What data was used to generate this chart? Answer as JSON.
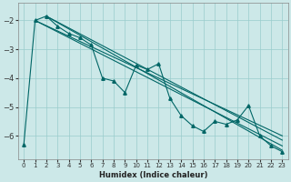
{
  "xlabel": "Humidex (Indice chaleur)",
  "background_color": "#cce8e8",
  "grid_color": "#99cccc",
  "line_color": "#006666",
  "xlim": [
    -0.5,
    23.5
  ],
  "ylim": [
    -6.8,
    -1.4
  ],
  "xticks": [
    0,
    1,
    2,
    3,
    4,
    5,
    6,
    7,
    8,
    9,
    10,
    11,
    12,
    13,
    14,
    15,
    16,
    17,
    18,
    19,
    20,
    21,
    22,
    23
  ],
  "yticks": [
    -6,
    -5,
    -4,
    -3,
    -2
  ],
  "marker_x": [
    0,
    1,
    2,
    3,
    4,
    5,
    6,
    7,
    8,
    9,
    10,
    11,
    12,
    13,
    14,
    15,
    16,
    17,
    18,
    19,
    20,
    21,
    22,
    23
  ],
  "marker_y": [
    -6.3,
    -2.0,
    -1.85,
    -2.2,
    -2.45,
    -2.6,
    -2.85,
    -4.0,
    -4.1,
    -4.5,
    -3.55,
    -3.7,
    -3.5,
    -4.7,
    -5.3,
    -5.65,
    -5.85,
    -5.5,
    -5.6,
    -5.45,
    -4.95,
    -6.0,
    -6.35,
    -6.55
  ],
  "trend1_x": [
    1,
    23
  ],
  "trend1_y": [
    -2.0,
    -6.0
  ],
  "trend2_x": [
    2,
    23
  ],
  "trend2_y": [
    -1.85,
    -6.15
  ],
  "trend3_x": [
    1,
    23
  ],
  "trend3_y": [
    -2.0,
    -6.35
  ],
  "trend4_x": [
    2,
    23
  ],
  "trend4_y": [
    -1.85,
    -6.5
  ]
}
